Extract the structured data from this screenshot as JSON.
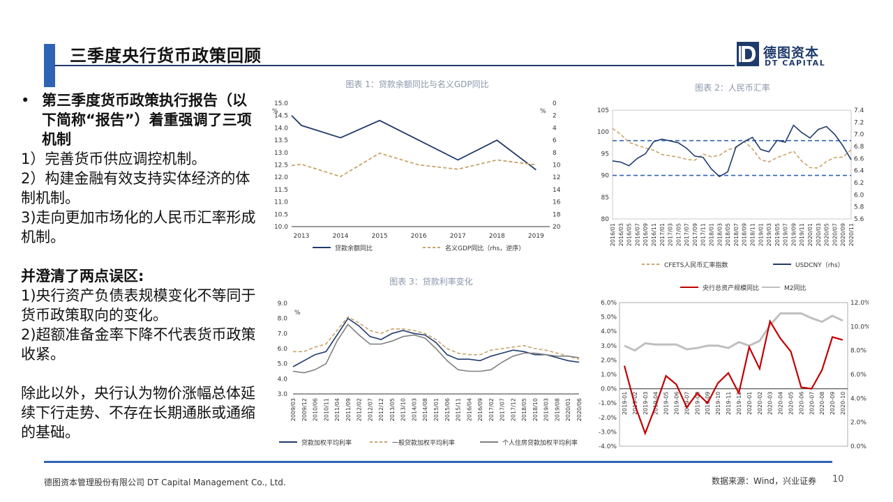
{
  "header": {
    "title": "三季度央行货币政策回顾"
  },
  "logo": {
    "cn": "德图资本",
    "en": "DT CAPITAL"
  },
  "body": {
    "bullet": "第三季度货币政策执行报告（以下简称“报告”）着重强调了三项机制",
    "items": [
      "1）完善货币供应调控机制。",
      "2）构建金融有效支持实体经济的体制机制。",
      "3)走向更加市场化的人民币汇率形成机制。"
    ],
    "clarify_heading": "并澄清了两点误区:",
    "clarify_items": [
      "1)央行资产负债表规模变化不等同于货币政策取向的变化。",
      "2)超额准备金率下降不代表货币政策收紧。"
    ],
    "closing": "除此以外，央行认为物价涨幅总体延续下行走势、不存在长期通胀或通缩的基础。"
  },
  "footer": {
    "company": "德图资本管理股份有限公司  DT Capital Management Co., Ltd.",
    "source": "数据来源：Wind，兴业证券",
    "page": "10"
  },
  "chart_data": [
    {
      "type": "line",
      "title": "图表 1：贷款余额同比与名义GDP同比",
      "x": [
        "2013",
        "2014",
        "2015",
        "2016",
        "2017",
        "2018",
        "2019"
      ],
      "ylim": [
        10.0,
        15.0
      ],
      "y_ticks": [
        "15.0",
        "14.5",
        "14.0",
        "13.5",
        "13.0",
        "12.5",
        "12.0",
        "11.5",
        "11.0",
        "10.5",
        "10.0"
      ],
      "y_unit": "%",
      "y2lim": [
        0,
        20
      ],
      "y2_ticks": [
        "0",
        "2",
        "4",
        "6",
        "8",
        "10",
        "12",
        "14",
        "16",
        "18",
        "20"
      ],
      "y2_unit": "%",
      "y2_inverted": true,
      "series": [
        {
          "name": "贷款余额同比",
          "axis": "left",
          "color": "#1f3b6b",
          "style": "solid",
          "x": [
            2012.75,
            2013,
            2014,
            2015,
            2016,
            2017,
            2018,
            2019
          ],
          "values": [
            14.5,
            14.1,
            13.6,
            14.3,
            13.5,
            12.7,
            13.5,
            12.3
          ]
        },
        {
          "name": "名义GDP同比（rhs，逆序）",
          "axis": "right",
          "color": "#c9a36a",
          "style": "dashed",
          "x": [
            2012.75,
            2013,
            2014,
            2015,
            2016,
            2017,
            2018,
            2019
          ],
          "values": [
            10.1,
            9.9,
            11.9,
            8.1,
            10.0,
            10.7,
            9.2,
            10.0
          ]
        }
      ]
    },
    {
      "type": "line",
      "title": "图表 2：人民币汇率",
      "x_ticks": [
        "2016/01",
        "2016/03",
        "2016/05",
        "2016/07",
        "2016/09",
        "2016/11",
        "2017/01",
        "2017/03",
        "2017/05",
        "2017/07",
        "2017/09",
        "2017/11",
        "2018/01",
        "2018/03",
        "2018/05",
        "2018/07",
        "2018/09",
        "2018/11",
        "2019/01",
        "2019/03",
        "2019/05",
        "2019/07",
        "2019/09",
        "2019/11",
        "2020/01",
        "2020/03",
        "2020/05",
        "2020/07",
        "2020/09",
        "2020/11"
      ],
      "ylim": [
        80,
        105
      ],
      "y_ticks": [
        "105",
        "100",
        "95",
        "90",
        "85",
        "80"
      ],
      "y2lim": [
        5.6,
        7.4
      ],
      "y2_ticks": [
        "7.4",
        "7.2",
        "7.0",
        "6.8",
        "6.6",
        "6.4",
        "6.2",
        "6.0",
        "5.8",
        "5.6"
      ],
      "reference_lines": [
        98,
        90
      ],
      "series": [
        {
          "name": "CFETS人民币汇率指数",
          "axis": "left",
          "color": "#c9a36a",
          "style": "dashed",
          "values": [
            100.8,
            99.4,
            97.6,
            96.9,
            96.3,
            95.8,
            94.8,
            94.5,
            94.2,
            93.7,
            93.5,
            94.9,
            94.3,
            94.6,
            95.9,
            96.4,
            97.8,
            96.1,
            93.6,
            93.1,
            94.1,
            94.8,
            95.6,
            93.3,
            91.8,
            91.7,
            93.2,
            94.1,
            94.2,
            95.9
          ]
        },
        {
          "name": "USDCNY（rhs）",
          "axis": "right",
          "color": "#1f3b6b",
          "style": "solid",
          "values": [
            6.56,
            6.54,
            6.48,
            6.6,
            6.68,
            6.88,
            6.92,
            6.89,
            6.86,
            6.77,
            6.64,
            6.62,
            6.43,
            6.3,
            6.38,
            6.79,
            6.88,
            6.95,
            6.75,
            6.71,
            6.9,
            6.87,
            7.15,
            7.03,
            6.94,
            7.08,
            7.13,
            7.0,
            6.81,
            6.58
          ]
        }
      ]
    },
    {
      "type": "line",
      "title": "图表 3：贷款利率变化",
      "x_ticks": [
        "2009/03",
        "2009/12",
        "2010/06",
        "2010/11",
        "2011/04",
        "2011/09",
        "2012/02",
        "2012/07",
        "2012/12",
        "2013/05",
        "2013/10",
        "2014/03",
        "2014/08",
        "2015/01",
        "2015/06",
        "2015/11",
        "2016/04",
        "2016/09",
        "2017/02",
        "2017/07",
        "2017/12",
        "2018/05",
        "2018/10",
        "2019/03",
        "2019/08",
        "2020/01",
        "2020/06"
      ],
      "ylim": [
        3.0,
        9.0
      ],
      "y_ticks": [
        "9.0",
        "8.0",
        "7.0",
        "6.0",
        "5.0",
        "4.0",
        "3.0"
      ],
      "y_unit": "%",
      "series": [
        {
          "name": "贷款加权平均利率",
          "color": "#1f3b6b",
          "style": "solid",
          "values": [
            4.8,
            5.2,
            5.6,
            5.8,
            6.9,
            8.0,
            7.5,
            6.8,
            6.6,
            7.0,
            7.2,
            7.0,
            6.9,
            6.4,
            5.6,
            5.3,
            5.3,
            5.2,
            5.5,
            5.7,
            5.9,
            5.8,
            5.6,
            5.6,
            5.4,
            5.2,
            5.1
          ]
        },
        {
          "name": "一般贷款加权平均利率",
          "color": "#c9a36a",
          "style": "dashed",
          "values": [
            5.8,
            5.8,
            6.1,
            6.3,
            7.2,
            8.1,
            7.7,
            7.2,
            7.0,
            7.3,
            7.3,
            7.2,
            7.0,
            6.6,
            6.0,
            5.7,
            5.6,
            5.6,
            5.9,
            6.0,
            6.1,
            6.2,
            6.0,
            5.9,
            5.7,
            5.5,
            5.3
          ]
        },
        {
          "name": "个人住房贷款加权平均利率",
          "color": "#7f7f7f",
          "style": "solid",
          "values": [
            4.5,
            4.4,
            4.6,
            5.0,
            6.5,
            7.6,
            6.9,
            6.3,
            6.3,
            6.5,
            6.8,
            6.9,
            6.7,
            6.0,
            5.2,
            4.6,
            4.5,
            4.5,
            4.6,
            5.1,
            5.5,
            5.7,
            5.7,
            5.6,
            5.5,
            5.5,
            5.4
          ]
        }
      ]
    },
    {
      "type": "line",
      "title": "",
      "x_ticks": [
        "2019-01",
        "2019-02",
        "2019-03",
        "2019-04",
        "2019-05",
        "2019-06",
        "2019-07",
        "2019-08",
        "2019-09",
        "2019-10",
        "2019-11",
        "2019-12",
        "2020-01",
        "2020-02",
        "2020-03",
        "2020-04",
        "2020-05",
        "2020-06",
        "2020-07",
        "2020-08",
        "2020-09",
        "2020-10"
      ],
      "ylim": [
        -4.0,
        6.0
      ],
      "y_ticks": [
        "6.0%",
        "5.0%",
        "4.0%",
        "3.0%",
        "2.0%",
        "1.0%",
        "0.0%",
        "-1.0%",
        "-2.0%",
        "-3.0%",
        "-4.0%"
      ],
      "y2lim": [
        0.0,
        12.0
      ],
      "y2_ticks": [
        "12.0%",
        "10.0%",
        "8.0%",
        "6.0%",
        "4.0%",
        "2.0%",
        "0.0%"
      ],
      "series": [
        {
          "name": "央行总资产规模同比",
          "axis": "left",
          "color": "#c00000",
          "style": "solid",
          "values": [
            1.6,
            -1.1,
            -3.1,
            -1.2,
            0.9,
            0.3,
            -1.3,
            -0.3,
            -1.0,
            0.4,
            1.1,
            -0.3,
            2.9,
            1.4,
            4.7,
            3.5,
            2.6,
            0.1,
            0.0,
            1.3,
            3.6,
            3.4
          ]
        },
        {
          "name": "M2同比",
          "axis": "right",
          "color": "#bfbfbf",
          "style": "solid",
          "values": [
            8.4,
            8.0,
            8.6,
            8.5,
            8.5,
            8.5,
            8.1,
            8.2,
            8.4,
            8.4,
            8.2,
            8.7,
            8.4,
            8.8,
            10.1,
            11.1,
            11.1,
            11.1,
            10.7,
            10.4,
            10.9,
            10.5
          ]
        }
      ]
    }
  ]
}
